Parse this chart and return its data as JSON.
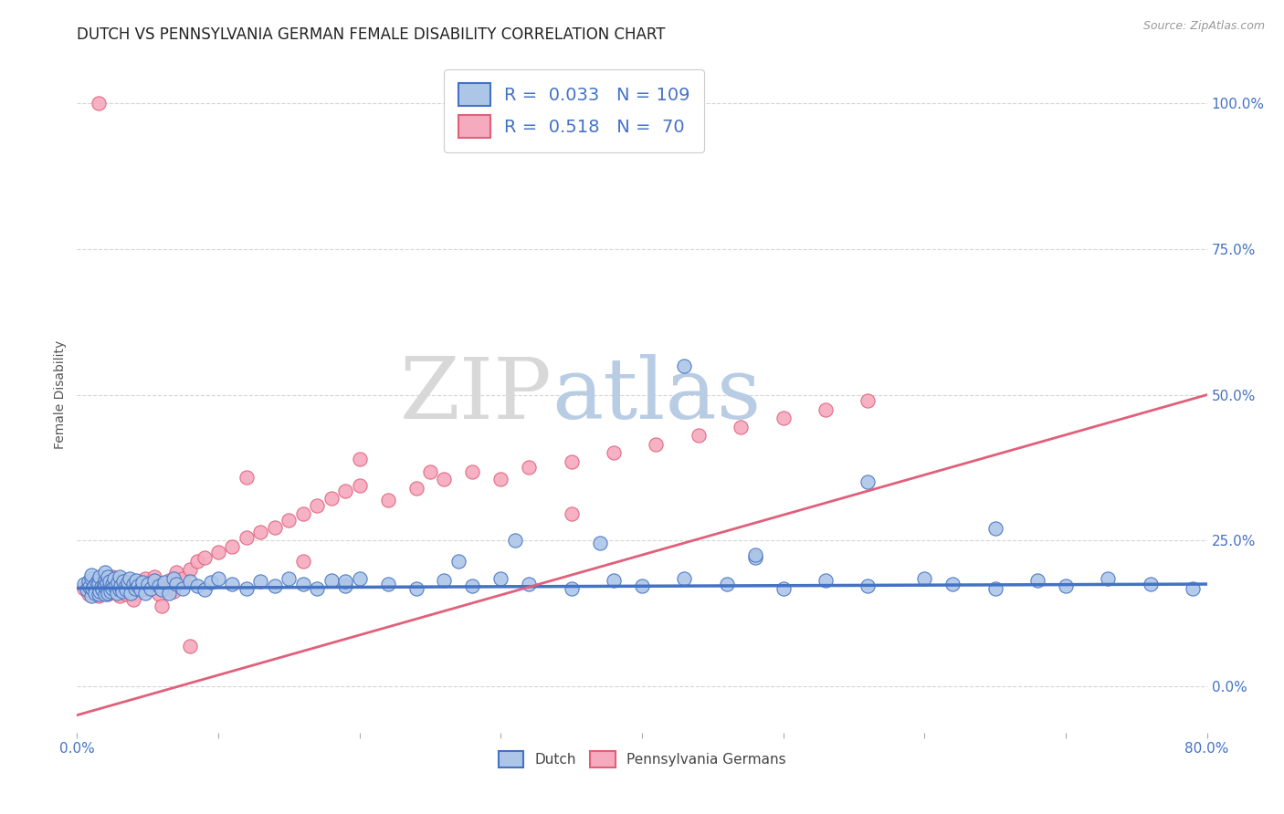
{
  "title": "DUTCH VS PENNSYLVANIA GERMAN FEMALE DISABILITY CORRELATION CHART",
  "source_text": "Source: ZipAtlas.com",
  "xlabel": "",
  "ylabel": "Female Disability",
  "xlim": [
    0.0,
    0.8
  ],
  "ylim": [
    -0.08,
    1.08
  ],
  "xticks": [
    0.0,
    0.1,
    0.2,
    0.3,
    0.4,
    0.5,
    0.6,
    0.7,
    0.8
  ],
  "xticklabels": [
    "0.0%",
    "",
    "",
    "",
    "",
    "",
    "",
    "",
    "80.0%"
  ],
  "yticks_right": [
    0.0,
    0.25,
    0.5,
    0.75,
    1.0
  ],
  "ytick_right_labels": [
    "0.0%",
    "25.0%",
    "50.0%",
    "75.0%",
    "100.0%"
  ],
  "dutch_color": "#adc6e8",
  "pa_german_color": "#f5aabe",
  "dutch_line_color": "#4472c4",
  "pa_line_color": "#e0607a",
  "dutch_R": 0.033,
  "dutch_N": 109,
  "pa_R": 0.518,
  "pa_N": 70,
  "watermark_zip": "ZIP",
  "watermark_atlas": "atlas",
  "legend_label_dutch": "Dutch",
  "legend_label_pa": "Pennsylvania Germans",
  "dutch_line_y0": 0.168,
  "dutch_line_y1": 0.175,
  "pa_line_y0": -0.05,
  "pa_line_y1": 0.5,
  "dutch_scatter_x": [
    0.005,
    0.007,
    0.008,
    0.009,
    0.01,
    0.01,
    0.01,
    0.011,
    0.012,
    0.013,
    0.014,
    0.015,
    0.015,
    0.015,
    0.016,
    0.016,
    0.017,
    0.018,
    0.019,
    0.02,
    0.02,
    0.02,
    0.02,
    0.021,
    0.021,
    0.022,
    0.022,
    0.023,
    0.023,
    0.024,
    0.025,
    0.025,
    0.026,
    0.027,
    0.028,
    0.029,
    0.03,
    0.03,
    0.031,
    0.032,
    0.033,
    0.034,
    0.035,
    0.036,
    0.037,
    0.038,
    0.04,
    0.041,
    0.042,
    0.043,
    0.045,
    0.046,
    0.048,
    0.05,
    0.052,
    0.055,
    0.058,
    0.06,
    0.062,
    0.065,
    0.068,
    0.07,
    0.075,
    0.08,
    0.085,
    0.09,
    0.095,
    0.1,
    0.11,
    0.12,
    0.13,
    0.14,
    0.15,
    0.16,
    0.17,
    0.18,
    0.19,
    0.2,
    0.22,
    0.24,
    0.26,
    0.28,
    0.3,
    0.32,
    0.35,
    0.38,
    0.4,
    0.43,
    0.46,
    0.5,
    0.53,
    0.56,
    0.6,
    0.62,
    0.65,
    0.68,
    0.7,
    0.73,
    0.76,
    0.79,
    0.43,
    0.56,
    0.65,
    0.31,
    0.48,
    0.37,
    0.27,
    0.19,
    0.48
  ],
  "dutch_scatter_y": [
    0.175,
    0.165,
    0.18,
    0.17,
    0.155,
    0.185,
    0.19,
    0.168,
    0.172,
    0.16,
    0.178,
    0.182,
    0.158,
    0.175,
    0.162,
    0.188,
    0.17,
    0.165,
    0.175,
    0.158,
    0.182,
    0.172,
    0.195,
    0.165,
    0.178,
    0.16,
    0.188,
    0.172,
    0.18,
    0.162,
    0.175,
    0.168,
    0.185,
    0.17,
    0.16,
    0.178,
    0.165,
    0.188,
    0.172,
    0.162,
    0.18,
    0.17,
    0.165,
    0.178,
    0.185,
    0.16,
    0.175,
    0.168,
    0.182,
    0.172,
    0.165,
    0.178,
    0.16,
    0.175,
    0.168,
    0.182,
    0.172,
    0.165,
    0.178,
    0.16,
    0.185,
    0.175,
    0.168,
    0.18,
    0.172,
    0.165,
    0.178,
    0.185,
    0.175,
    0.168,
    0.18,
    0.172,
    0.185,
    0.175,
    0.168,
    0.182,
    0.172,
    0.185,
    0.175,
    0.168,
    0.182,
    0.172,
    0.185,
    0.175,
    0.168,
    0.182,
    0.172,
    0.185,
    0.175,
    0.168,
    0.182,
    0.172,
    0.185,
    0.175,
    0.168,
    0.182,
    0.172,
    0.185,
    0.175,
    0.168,
    0.55,
    0.35,
    0.27,
    0.25,
    0.22,
    0.245,
    0.215,
    0.18,
    0.225
  ],
  "pa_scatter_x": [
    0.005,
    0.008,
    0.01,
    0.012,
    0.015,
    0.015,
    0.018,
    0.02,
    0.02,
    0.022,
    0.025,
    0.025,
    0.028,
    0.03,
    0.03,
    0.032,
    0.035,
    0.035,
    0.038,
    0.04,
    0.042,
    0.045,
    0.048,
    0.05,
    0.052,
    0.055,
    0.058,
    0.06,
    0.062,
    0.065,
    0.068,
    0.07,
    0.075,
    0.08,
    0.085,
    0.09,
    0.1,
    0.11,
    0.12,
    0.13,
    0.14,
    0.15,
    0.16,
    0.17,
    0.18,
    0.19,
    0.2,
    0.22,
    0.24,
    0.26,
    0.28,
    0.3,
    0.32,
    0.35,
    0.38,
    0.41,
    0.44,
    0.47,
    0.5,
    0.53,
    0.56,
    0.2,
    0.35,
    0.12,
    0.08,
    0.16,
    0.25,
    0.04,
    0.06,
    0.015
  ],
  "pa_scatter_y": [
    0.168,
    0.158,
    0.175,
    0.162,
    0.178,
    0.155,
    0.168,
    0.162,
    0.18,
    0.158,
    0.172,
    0.188,
    0.162,
    0.175,
    0.155,
    0.182,
    0.158,
    0.175,
    0.165,
    0.178,
    0.16,
    0.172,
    0.185,
    0.165,
    0.175,
    0.188,
    0.158,
    0.175,
    0.168,
    0.182,
    0.162,
    0.195,
    0.185,
    0.2,
    0.215,
    0.22,
    0.23,
    0.24,
    0.255,
    0.265,
    0.272,
    0.285,
    0.295,
    0.31,
    0.322,
    0.335,
    0.345,
    0.32,
    0.34,
    0.355,
    0.368,
    0.355,
    0.375,
    0.385,
    0.4,
    0.415,
    0.43,
    0.445,
    0.46,
    0.475,
    0.49,
    0.39,
    0.295,
    0.358,
    0.068,
    0.215,
    0.368,
    0.148,
    0.138,
    1.0
  ],
  "background_color": "#ffffff",
  "grid_color": "#d5d5d5",
  "title_color": "#222222",
  "title_fontsize": 12,
  "axis_label_color": "#555555"
}
